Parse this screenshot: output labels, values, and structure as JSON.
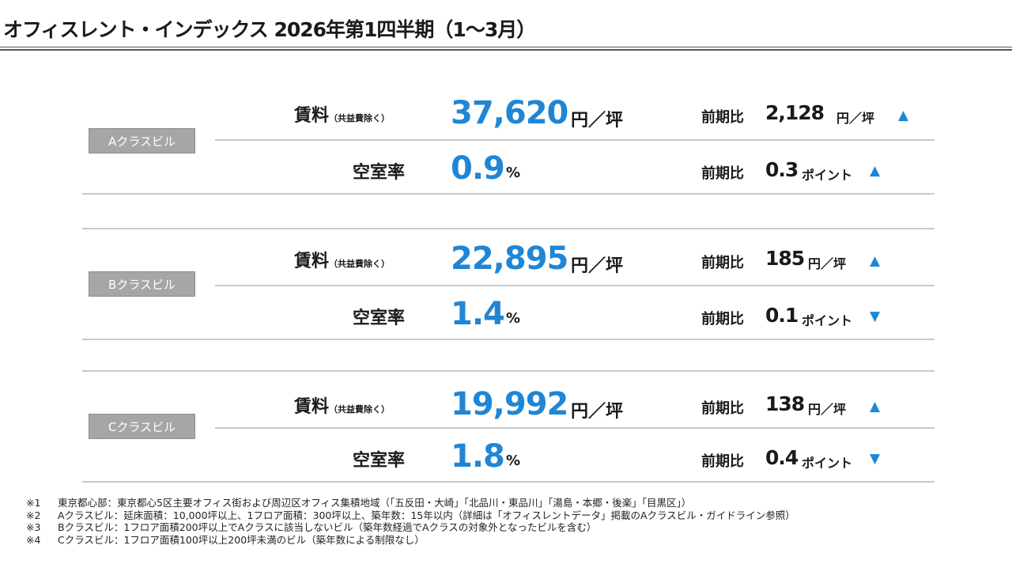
{
  "title": "オフィスレント・インデックス 2026年第1四半期（1〜3月）",
  "labels": {
    "rent_main": "賃料",
    "rent_sub": "（共益費除く）",
    "vacancy": "空室率",
    "compare": "前期比",
    "yen_per_tsubo": "円／坪",
    "percent": "%",
    "point": "ポイント"
  },
  "sections": [
    {
      "badge": "Aクラスビル",
      "rent_value": "37,620",
      "rent_change": "2,128",
      "rent_change_icon": "triangle-up-icon",
      "rent_change_symbol": "▲",
      "vacancy_value": "0.9",
      "vacancy_change": "0.3",
      "vacancy_change_icon": "triangle-up-icon",
      "vacancy_change_symbol": "▲"
    },
    {
      "badge": "Bクラスビル",
      "rent_value": "22,895",
      "rent_change": "185",
      "rent_change_icon": "triangle-up-icon",
      "rent_change_symbol": "▲",
      "vacancy_value": "1.4",
      "vacancy_change": "0.1",
      "vacancy_change_icon": "triangle-down-icon",
      "vacancy_change_symbol": "▼"
    },
    {
      "badge": "Cクラスビル",
      "rent_value": "19,992",
      "rent_change": "138",
      "rent_change_icon": "triangle-up-icon",
      "rent_change_symbol": "▲",
      "vacancy_value": "1.8",
      "vacancy_change": "0.4",
      "vacancy_change_icon": "triangle-down-icon",
      "vacancy_change_symbol": "▼"
    }
  ],
  "notes": [
    {
      "no": "※1",
      "text": "東京都心部：東京都心5区主要オフィス街および周辺区オフィス集積地域（「五反田・大崎」「北品川・東品川」「湯島・本郷・後楽」「目黒区」）"
    },
    {
      "no": "※2",
      "text": "Aクラスビル：延床面積：10,000坪以上、1フロア面積：300坪以上、築年数：15年以内（詳細は「オフィスレントデータ」掲載のAクラスビル・ガイドライン参照）"
    },
    {
      "no": "※3",
      "text": "Bクラスビル：1フロア面積200坪以上でAクラスに該当しないビル（築年数経過でAクラスの対象外となったビルを含む）"
    },
    {
      "no": "※4",
      "text": "Cクラスビル：1フロア面積100坪以上200坪未満のビル（築年数による制限なし）"
    }
  ],
  "colors": {
    "accent": "#1f86d6",
    "badge_bg": "#a6a6a6"
  }
}
